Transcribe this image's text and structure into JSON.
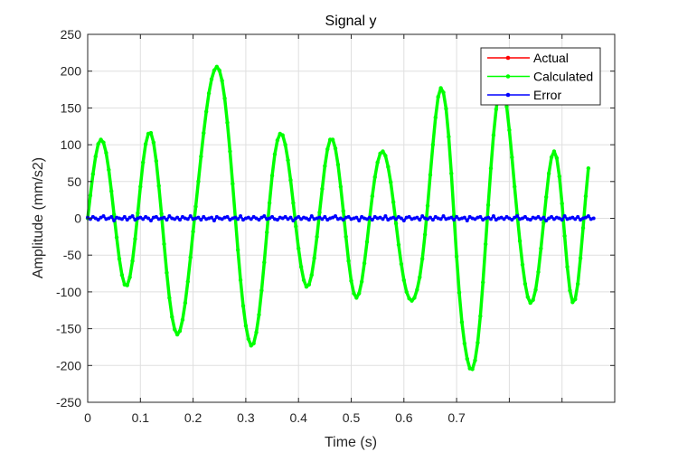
{
  "chart_data": {
    "type": "line",
    "title": "Signal y",
    "xlabel": "Time (s)",
    "ylabel": "Amplitude (mm/s2)",
    "xlim": [
      0,
      1.0
    ],
    "ylim": [
      -250,
      250
    ],
    "x_ticks": [
      0,
      0.1,
      0.2,
      0.3,
      0.4,
      0.5,
      0.6,
      0.7
    ],
    "x_tick_labels": [
      "0",
      "0.1",
      "0.2",
      "0.3",
      "0.4",
      "0.5",
      "0.6",
      "0.7"
    ],
    "y_ticks": [
      250,
      200,
      150,
      100,
      50,
      0,
      -50,
      -100,
      -150,
      -200,
      -250
    ],
    "y_tick_labels": [
      "250",
      "200",
      "150",
      "100",
      "50",
      "0",
      "-50",
      "-100",
      "-150",
      "-200",
      "-250"
    ],
    "grid": true,
    "legend_position": "top-right",
    "x_step": 0.005,
    "series": [
      {
        "name": "Actual",
        "color": "#ff0000",
        "values": [
          0,
          31,
          60,
          84,
          101,
          107,
          103,
          89,
          66,
          37,
          5,
          -26,
          -55,
          -77,
          -90,
          -91,
          -80,
          -58,
          -28,
          7,
          43,
          76,
          101,
          115,
          116,
          103,
          78,
          44,
          6,
          -35,
          -74,
          -108,
          -134,
          -151,
          -158,
          -153,
          -138,
          -115,
          -86,
          -53,
          -18,
          16,
          50,
          84,
          116,
          145,
          170,
          189,
          201,
          206,
          201,
          187,
          163,
          130,
          91,
          47,
          2,
          -43,
          -84,
          -119,
          -146,
          -164,
          -173,
          -170,
          -155,
          -131,
          -98,
          -60,
          -19,
          21,
          58,
          87,
          106,
          115,
          113,
          100,
          79,
          52,
          21,
          -11,
          -41,
          -66,
          -84,
          -93,
          -90,
          -77,
          -54,
          -25,
          8,
          40,
          71,
          94,
          107,
          107,
          95,
          73,
          43,
          10,
          -25,
          -58,
          -85,
          -102,
          -108,
          -102,
          -86,
          -61,
          -32,
          0,
          30,
          56,
          76,
          88,
          91,
          85,
          70,
          49,
          22,
          -7,
          -36,
          -62,
          -84,
          -100,
          -109,
          -112,
          -108,
          -97,
          -80,
          -55,
          -22,
          17,
          59,
          100,
          137,
          165,
          177,
          171,
          149,
          111,
          61,
          4,
          -52,
          -101,
          -141,
          -170,
          -191,
          -204,
          -205,
          -193,
          -169,
          -133,
          -87,
          -35,
          18,
          68,
          113,
          148,
          172,
          180,
          173,
          152,
          120,
          83,
          43,
          5,
          -31,
          -63,
          -89,
          -107,
          -115,
          -111,
          -97,
          -73,
          -41,
          -6,
          29,
          61,
          83,
          91,
          82,
          57,
          20,
          -24,
          -66,
          -98,
          -114,
          -110,
          -89,
          -54,
          -13,
          30,
          68
        ],
        "range": {
          "min": -206,
          "max": 208
        }
      },
      {
        "name": "Calculated",
        "color": "#00ff00",
        "values": [
          0,
          31,
          60,
          84,
          101,
          107,
          103,
          89,
          66,
          37,
          5,
          -26,
          -55,
          -77,
          -90,
          -91,
          -80,
          -58,
          -28,
          7,
          43,
          76,
          101,
          115,
          116,
          103,
          78,
          44,
          6,
          -35,
          -74,
          -108,
          -134,
          -151,
          -158,
          -153,
          -138,
          -115,
          -86,
          -53,
          -18,
          16,
          50,
          84,
          116,
          145,
          170,
          189,
          201,
          206,
          201,
          187,
          163,
          130,
          91,
          47,
          2,
          -43,
          -84,
          -119,
          -146,
          -164,
          -173,
          -170,
          -155,
          -131,
          -98,
          -60,
          -19,
          21,
          58,
          87,
          106,
          115,
          113,
          100,
          79,
          52,
          21,
          -11,
          -41,
          -66,
          -84,
          -93,
          -90,
          -77,
          -54,
          -25,
          8,
          40,
          71,
          94,
          107,
          107,
          95,
          73,
          43,
          10,
          -25,
          -58,
          -85,
          -102,
          -108,
          -102,
          -86,
          -61,
          -32,
          0,
          30,
          56,
          76,
          88,
          91,
          85,
          70,
          49,
          22,
          -7,
          -36,
          -62,
          -84,
          -100,
          -109,
          -112,
          -108,
          -97,
          -80,
          -55,
          -22,
          17,
          59,
          100,
          137,
          165,
          177,
          171,
          149,
          111,
          61,
          4,
          -52,
          -101,
          -141,
          -170,
          -191,
          -204,
          -205,
          -193,
          -169,
          -133,
          -87,
          -35,
          18,
          68,
          113,
          148,
          172,
          180,
          173,
          152,
          120,
          83,
          43,
          5,
          -31,
          -63,
          -89,
          -107,
          -115,
          -111,
          -97,
          -73,
          -41,
          -6,
          29,
          61,
          83,
          91,
          82,
          57,
          20,
          -24,
          -66,
          -98,
          -114,
          -110,
          -89,
          -54,
          -13,
          30,
          68
        ],
        "range": {
          "min": -206,
          "max": 208
        }
      },
      {
        "name": "Error",
        "color": "#0000ff",
        "values": [
          1,
          -1,
          2,
          0,
          -2,
          1,
          3,
          -1,
          0,
          2,
          -3,
          1,
          0,
          -1,
          2,
          -2,
          1,
          3,
          -2,
          0,
          1,
          -1,
          2,
          0,
          -3,
          1,
          2,
          -1,
          0,
          1,
          -2,
          3,
          0,
          -1,
          1,
          -2,
          2,
          0,
          -1,
          3,
          -1,
          0,
          1,
          -2,
          2,
          -1,
          0,
          1,
          -3,
          2,
          0,
          -1,
          1,
          2,
          -2,
          0,
          1,
          -1,
          3,
          -2,
          0,
          1,
          -1,
          2,
          0,
          -2,
          1,
          3,
          -1,
          0,
          2,
          -1,
          -2,
          1,
          0,
          2,
          -1,
          1,
          -3,
          0,
          2,
          -1,
          1,
          0,
          -2,
          3,
          -1,
          0,
          1,
          -1,
          2,
          -2,
          0,
          1,
          3,
          -1,
          0,
          -2,
          1,
          2,
          -1,
          0,
          1,
          -3,
          2,
          0,
          -1,
          1,
          -2,
          2,
          0,
          1,
          -1,
          3,
          -2,
          0,
          1,
          -1,
          2,
          0,
          -3,
          1,
          2,
          -1,
          0,
          1,
          -2,
          3,
          0,
          -1,
          1,
          -2,
          2,
          0,
          -1,
          3,
          -1,
          0,
          1,
          -2,
          2,
          -1,
          0,
          1,
          -3,
          2,
          0,
          -1,
          1,
          2,
          -2,
          0,
          1,
          -1,
          3,
          -2,
          0,
          1,
          -1,
          2,
          0,
          -2,
          1,
          3,
          -1,
          0,
          2,
          -1,
          -2,
          1,
          0,
          2,
          -1,
          1,
          -3,
          0,
          2,
          -1,
          1,
          0,
          -2,
          3,
          -1,
          0,
          1,
          -1,
          2,
          -2,
          0,
          1,
          3,
          -1,
          0
        ],
        "range": {
          "min": -4,
          "max": 4
        }
      }
    ]
  }
}
